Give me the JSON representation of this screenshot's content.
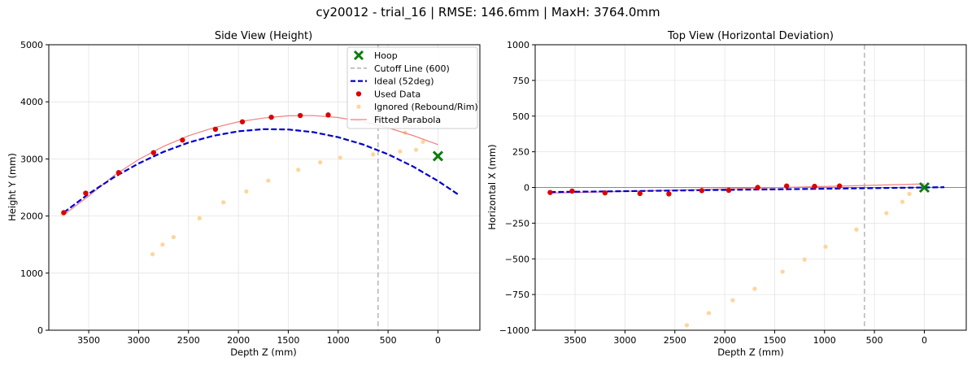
{
  "figure": {
    "suptitle": "cy20012 - trial_16 | RMSE: 146.6mm | MaxH: 3764.0mm"
  },
  "colors": {
    "used": "#dd0000",
    "ignored": "#ffd59a",
    "ideal": "#0000cc",
    "fitted": "#f08080",
    "cutoff": "#aaaaaa",
    "hoop": "#0b7d0b",
    "grid": "#e4e4e4"
  },
  "chart_data": [
    {
      "type": "scatter",
      "title": "Side View (Height)",
      "xlabel": "Depth Z (mm)",
      "ylabel": "Height Y (mm)",
      "xlim": [
        3900,
        -420
      ],
      "ylim": [
        0,
        5000
      ],
      "x_reversed": true,
      "xticks": [
        3500,
        3000,
        2500,
        2000,
        1500,
        1000,
        500,
        0
      ],
      "yticks": [
        0,
        1000,
        2000,
        3000,
        4000,
        5000
      ],
      "grid": true,
      "legend_position": "top-right",
      "legend": [
        "Hoop",
        "Cutoff Line (600)",
        "Ideal (52deg)",
        "Used Data",
        "Ignored (Rebound/Rim)",
        "Fitted Parabola"
      ],
      "hoop": {
        "x": 0,
        "y": 3050
      },
      "cutoff_x": 600,
      "used": {
        "x": [
          3750,
          3530,
          3200,
          2850,
          2560,
          2230,
          1960,
          1670,
          1380,
          1100
        ],
        "y": [
          2060,
          2400,
          2760,
          3110,
          3330,
          3520,
          3650,
          3730,
          3760,
          3770
        ]
      },
      "ignored": {
        "x": [
          3760,
          2860,
          2760,
          2650,
          2390,
          2150,
          1920,
          1700,
          1400,
          1180,
          980,
          650,
          380,
          330,
          220,
          150
        ],
        "y": [
          2030,
          1330,
          1500,
          1630,
          1960,
          2240,
          2430,
          2620,
          2810,
          2940,
          3020,
          3080,
          3130,
          3460,
          3160,
          3300
        ]
      },
      "ideal": {
        "x": [
          3750,
          3500,
          3250,
          3000,
          2750,
          2500,
          2250,
          2000,
          1750,
          1500,
          1250,
          1000,
          750,
          500,
          250,
          0,
          -200
        ],
        "y": [
          2060,
          2389,
          2675,
          2921,
          3124,
          3286,
          3406,
          3484,
          3521,
          3516,
          3469,
          3381,
          3252,
          3081,
          2868,
          2614,
          2381
        ]
      },
      "fitted": {
        "x": [
          3750,
          3500,
          3250,
          3000,
          2750,
          2500,
          2250,
          2000,
          1750,
          1500,
          1250,
          1000,
          750,
          500,
          250,
          0
        ],
        "y": [
          2020,
          2350,
          2705,
          2990,
          3220,
          3405,
          3545,
          3650,
          3715,
          3755,
          3760,
          3725,
          3650,
          3545,
          3410,
          3250
        ]
      }
    },
    {
      "type": "scatter",
      "title": "Top View (Horizontal Deviation)",
      "xlabel": "Depth Z (mm)",
      "ylabel": "Horizontal X (mm)",
      "xlim": [
        3900,
        -420
      ],
      "ylim": [
        -1000,
        1000
      ],
      "x_reversed": true,
      "xticks": [
        3500,
        3000,
        2500,
        2000,
        1500,
        1000,
        500,
        0
      ],
      "yticks": [
        -1000,
        -750,
        -500,
        -250,
        0,
        250,
        500,
        750,
        1000
      ],
      "grid": true,
      "zero_line": true,
      "hoop": {
        "x": 0,
        "y": 0
      },
      "cutoff_x": 600,
      "used": {
        "x": [
          3750,
          3530,
          3200,
          2850,
          2560,
          2230,
          1960,
          1670,
          1380,
          1100,
          850
        ],
        "y": [
          -35,
          -25,
          -38,
          -42,
          -45,
          -22,
          -20,
          0,
          10,
          8,
          10
        ]
      },
      "ignored": {
        "x": [
          2380,
          2160,
          1920,
          1700,
          1420,
          1200,
          990,
          680,
          380,
          220,
          150
        ],
        "y": [
          -965,
          -880,
          -790,
          -710,
          -590,
          -505,
          -415,
          -295,
          -180,
          -100,
          -45
        ]
      },
      "ideal": {
        "x": [
          3750,
          3000,
          2000,
          1000,
          0,
          -200
        ],
        "y": [
          -32,
          -26,
          -17,
          -9,
          0,
          2
        ]
      },
      "fitted": {
        "x": [
          3750,
          3000,
          2000,
          1000,
          0
        ],
        "y": [
          -40,
          -27,
          -10,
          7,
          25
        ]
      }
    }
  ]
}
